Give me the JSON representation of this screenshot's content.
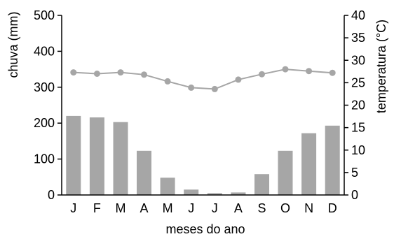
{
  "chart_data": {
    "type": "bar",
    "categories": [
      "J",
      "F",
      "M",
      "A",
      "M",
      "J",
      "J",
      "A",
      "S",
      "O",
      "N",
      "D"
    ],
    "xlabel": "meses do ano",
    "ylabel": "chuva (mm)",
    "y2label": "temperatura (°C)",
    "ylim": [
      0,
      500
    ],
    "y2lim": [
      0,
      40
    ],
    "yticks": [
      0,
      100,
      200,
      300,
      400,
      500
    ],
    "y2ticks": [
      0,
      5,
      10,
      15,
      20,
      25,
      30,
      35,
      40
    ],
    "grid": false,
    "series": [
      {
        "type": "bar",
        "axis": "left",
        "color": "#a6a6a6",
        "values": [
          220,
          216,
          203,
          123,
          48,
          15,
          5,
          7,
          58,
          123,
          172,
          193
        ]
      },
      {
        "type": "line",
        "axis": "right",
        "color": "#a6a6a6",
        "values": [
          27.3,
          27.0,
          27.3,
          26.8,
          25.3,
          23.9,
          23.6,
          25.7,
          26.9,
          28.0,
          27.6,
          27.2
        ]
      }
    ]
  }
}
